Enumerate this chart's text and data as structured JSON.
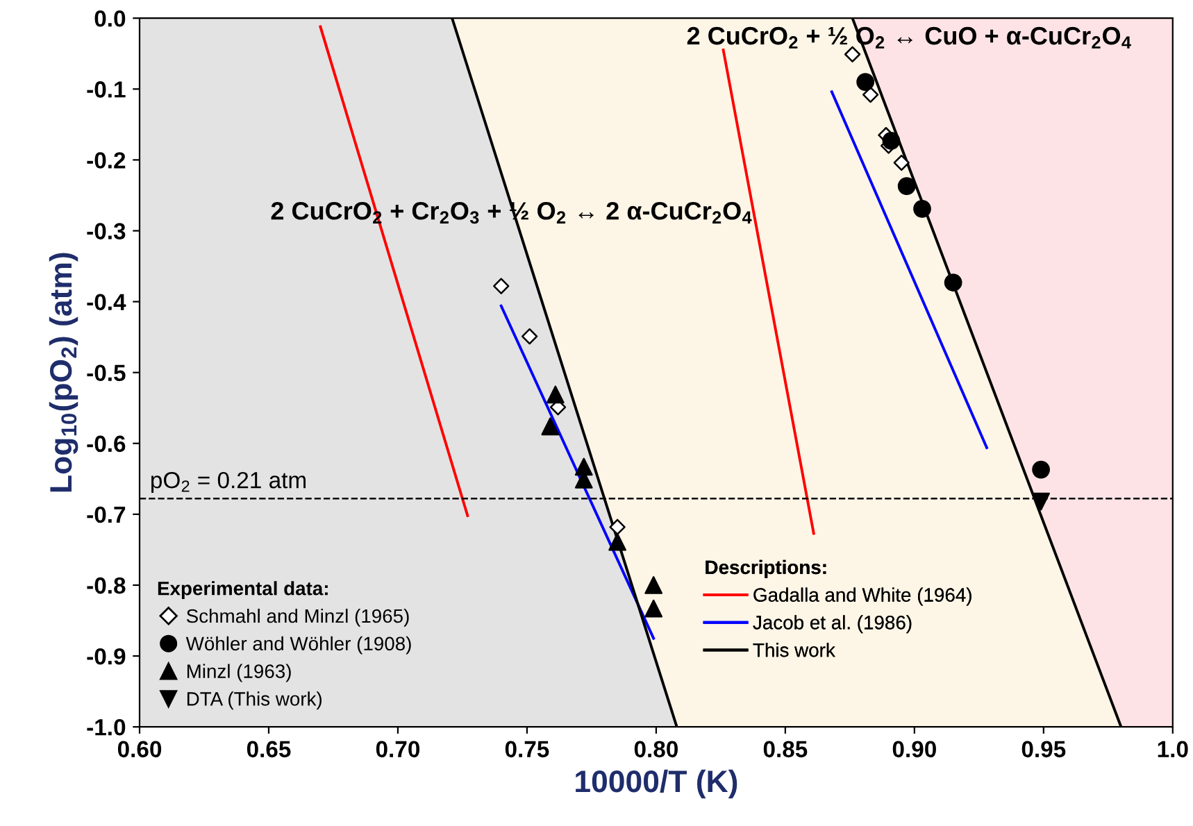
{
  "chart_data": {
    "type": "scatter",
    "xlabel": "10000/T (K)",
    "ylabel": "Log$_{10}$(pO$_{2}$) (atm)",
    "xlim": [
      0.6,
      1.0
    ],
    "ylim": [
      -1.0,
      0.0
    ],
    "xticks": [
      {
        "value": 0.6,
        "label": "0.60"
      },
      0.65,
      {
        "value": 0.7,
        "label": "0.70"
      },
      0.75,
      {
        "value": 0.8,
        "label": "0.80"
      },
      0.85,
      {
        "value": 0.9,
        "label": "0.90"
      },
      0.95,
      {
        "value": 1.0,
        "label": "1.0"
      }
    ],
    "yticks": [
      {
        "value": 0.0,
        "label": "0.0"
      },
      -0.1,
      -0.2,
      -0.3,
      -0.4,
      -0.5,
      -0.6,
      -0.7,
      -0.8,
      -0.9,
      {
        "value": -1.0,
        "label": "-1.0"
      }
    ],
    "grid": false,
    "legend": [
      "bottom left",
      "bottom"
    ],
    "legend_title": [
      "Experimental data:",
      "Descriptions:"
    ],
    "series": [
      {
        "type": "line",
        "name": "Gadalla and White (1964)",
        "color": "#ff0000",
        "x": [
          0.67,
          0.727,
          0.78,
          0.826,
          0.861
        ],
        "values": [
          -0.012,
          -0.702,
          null,
          -0.045,
          -0.727
        ]
      },
      {
        "type": "line",
        "name": "Jacob et al. (1986)",
        "color": "#0000ff",
        "x": [
          0.74,
          0.799,
          0.83,
          0.868,
          0.928
        ],
        "values": [
          -0.406,
          -0.875,
          null,
          -0.104,
          -0.606
        ]
      },
      {
        "type": "line",
        "name": "This work",
        "color": "#000000",
        "x": [
          0.721,
          0.7297,
          0.7993,
          0.808
        ],
        "values": [
          0.0,
          -0.1,
          -0.9,
          -1.0
        ]
      },
      {
        "type": "line",
        "color": "#000000",
        "x": [
          0.876,
          0.8864,
          0.9696,
          0.98
        ],
        "values": [
          0.0,
          -0.1,
          -0.9,
          -1.0
        ]
      },
      {
        "name": "Schmahl and Minzl (1965)",
        "color": "#000000",
        "marker": "diamond",
        "x": [
          0.74,
          0.751,
          0.762,
          0.785,
          0.876,
          0.883,
          0.889,
          0.89,
          0.895
        ],
        "values": [
          -0.378,
          -0.449,
          -0.549,
          -0.718,
          -0.051,
          -0.108,
          -0.165,
          -0.18,
          -0.204
        ]
      },
      {
        "name": "Wöhler and Wöhler (1908)",
        "color": "#000000",
        "marker": "circle",
        "x": [
          0.881,
          0.891,
          0.897,
          0.903,
          0.915,
          0.949
        ],
        "values": [
          -0.09,
          -0.173,
          -0.237,
          -0.269,
          -0.373,
          -0.637
        ]
      },
      {
        "name": "Minzl (1963)",
        "color": "#000000",
        "marker": "triangle",
        "x": [
          0.761,
          0.759,
          0.772,
          0.772,
          0.785,
          0.799,
          0.799
        ],
        "values": [
          -0.531,
          -0.576,
          -0.633,
          -0.651,
          -0.739,
          -0.8,
          -0.833
        ]
      },
      {
        "name": "DTA (This work)",
        "color": "#000000",
        "marker": "triangle_down",
        "x": [
          0.949
        ],
        "values": [
          -0.682
        ]
      }
    ],
    "ref_lines": [
      {
        "axis": "y",
        "value": -0.6778,
        "color": "#000000",
        "line_style": "dashed"
      }
    ],
    "annotations": [
      "2 CuCrO$_{2}$ + Cr$_{2}$O$_{3}$ + ½ O$_{2}$ ↔ 2 α-CuCr$_{2}$O$_{4}$",
      "2 CuCrO$_{2}$ + ½ O$_{2}$ ↔ CuO + α-CuCr$_{2}$O$_{4}$",
      "pO$_{2}$ = 0.21 atm"
    ]
  }
}
